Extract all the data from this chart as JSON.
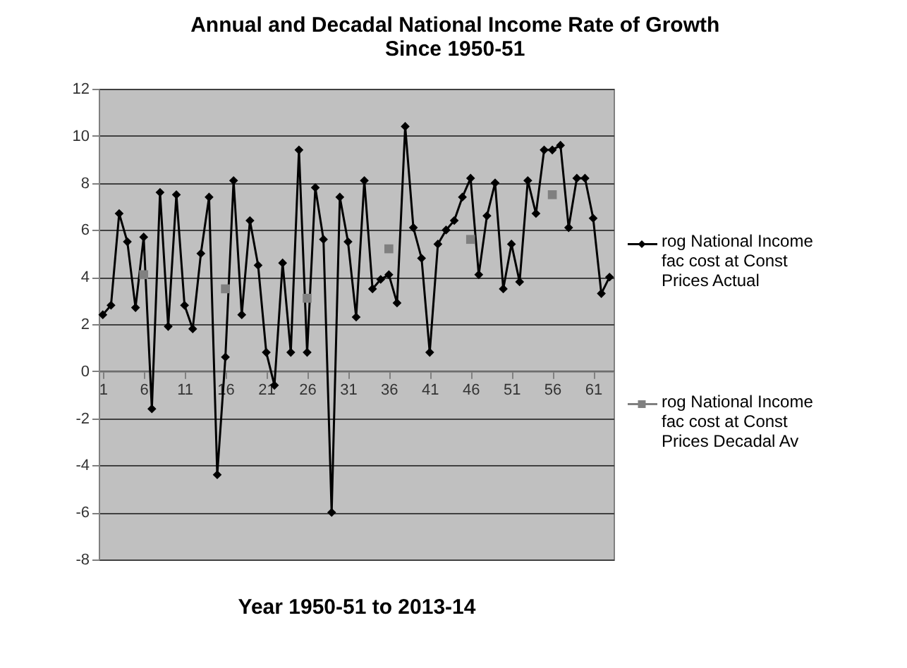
{
  "chart_data": {
    "type": "line",
    "title": "Annual and Decadal National Income Rate of Growth Since 1950-51",
    "xlabel": "Year 1950-51 to 2013-14",
    "xlim": [
      0.5,
      63.5
    ],
    "xticks": [
      1,
      6,
      11,
      16,
      21,
      26,
      31,
      36,
      41,
      46,
      51,
      56,
      61
    ],
    "ylim": [
      -8,
      12
    ],
    "yticks": [
      -8,
      -6,
      -4,
      -2,
      0,
      2,
      4,
      6,
      8,
      10,
      12
    ],
    "grid": "y",
    "legend": "right",
    "series": [
      {
        "name": "rog National Income fac cost at Const Prices Actual",
        "color": "#000000",
        "marker": "diamond",
        "x": [
          1,
          2,
          3,
          4,
          5,
          6,
          7,
          8,
          9,
          10,
          11,
          12,
          13,
          14,
          15,
          16,
          17,
          18,
          19,
          20,
          21,
          22,
          23,
          24,
          25,
          26,
          27,
          28,
          29,
          30,
          31,
          32,
          33,
          34,
          35,
          36,
          37,
          38,
          39,
          40,
          41,
          42,
          43,
          44,
          45,
          46,
          47,
          48,
          49,
          50,
          51,
          52,
          53,
          54,
          55,
          56,
          57,
          58,
          59,
          60,
          61,
          62,
          63
        ],
        "values": [
          2.4,
          2.8,
          6.7,
          5.5,
          2.7,
          5.7,
          -1.6,
          7.6,
          1.9,
          7.5,
          2.8,
          1.8,
          5.0,
          7.4,
          -4.4,
          0.6,
          8.1,
          2.4,
          6.4,
          4.5,
          0.8,
          -0.6,
          4.6,
          0.8,
          9.4,
          0.8,
          7.8,
          5.6,
          -6.0,
          7.4,
          5.5,
          2.3,
          8.1,
          3.5,
          3.9,
          4.1,
          2.9,
          10.4,
          6.1,
          4.8,
          0.8,
          5.4,
          6.0,
          6.4,
          7.4,
          8.2,
          4.1,
          6.6,
          8.0,
          3.5,
          5.4,
          3.8,
          8.1,
          6.7,
          9.4,
          9.4,
          9.6,
          6.1,
          8.2,
          8.2,
          6.5,
          3.3,
          4.0
        ]
      },
      {
        "name": "rog National Income fac cost at Const Prices Decadal Av",
        "color": "#808080",
        "type": "scatter",
        "marker": "square",
        "x": [
          6,
          16,
          26,
          36,
          46,
          56
        ],
        "values": [
          4.1,
          3.5,
          3.1,
          5.2,
          5.6,
          7.5
        ]
      }
    ]
  }
}
